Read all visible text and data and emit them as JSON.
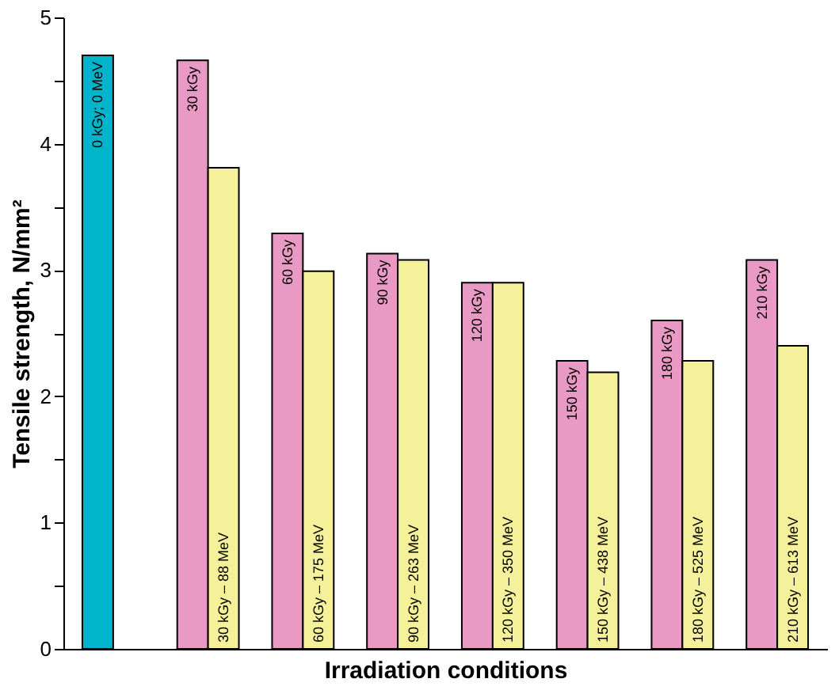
{
  "chart_data": {
    "type": "bar",
    "xlabel": "Irradiation conditions",
    "ylabel": "Tensile strength, N/mm²",
    "categories": [
      null,
      null,
      null,
      null,
      null,
      null,
      null,
      null
    ],
    "series": [
      {
        "color": "#00b4cc",
        "values": [
          4.7,
          null,
          null,
          null,
          null,
          null,
          null,
          null
        ]
      },
      {
        "color": "#e89ac4",
        "values": [
          null,
          4.66,
          3.29,
          3.13,
          2.9,
          2.28,
          2.6,
          3.08
        ]
      },
      {
        "color": "#f5f09a",
        "values": [
          null,
          3.81,
          2.99,
          3.08,
          2.9,
          2.19,
          2.28,
          2.4
        ]
      }
    ],
    "annotations": [
      "0 kGy; 0 MeV",
      "30 kGy",
      "30 kGy – 88 MeV",
      "60 kGy",
      "60 kGy – 175 MeV",
      "90 kGy",
      "90 kGy – 263 MeV",
      "120 kGy",
      "120 kGy – 350 MeV",
      "150 kGy",
      "150 kGy – 438 MeV",
      "180 kGy",
      "180 kGy – 525 MeV",
      "210 kGy",
      "210 kGy – 613 MeV"
    ],
    "ylim": [
      0,
      5
    ],
    "yticks": [
      0,
      {
        "value": 0.5,
        "label": null
      },
      1,
      {
        "value": 1.5,
        "label": null
      },
      2,
      {
        "value": 2.5,
        "label": null
      },
      3,
      {
        "value": 3.5,
        "label": null
      },
      4,
      {
        "value": 4.5,
        "label": null
      },
      5
    ],
    "grid": false,
    "legend": false
  }
}
